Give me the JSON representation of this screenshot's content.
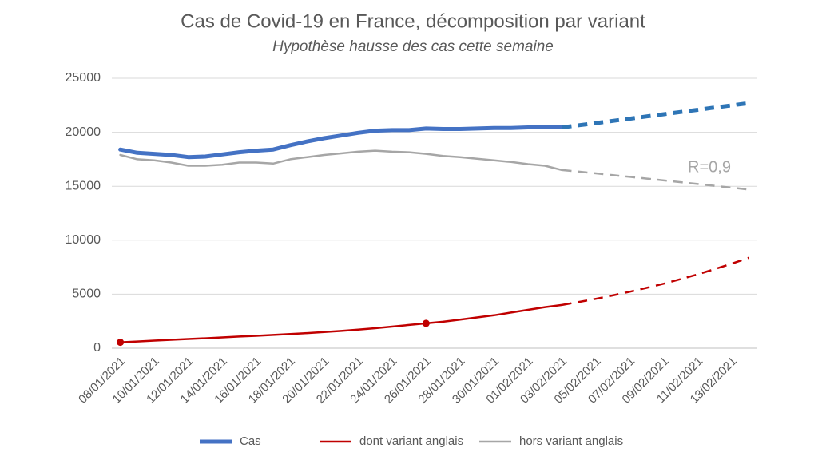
{
  "chart_data": {
    "type": "line",
    "title": "Cas de Covid-19 en France, décomposition par variant",
    "subtitle": "Hypothèse hausse des cas cette semaine",
    "annotation": "R=0,9",
    "categories": [
      "08/01/2021",
      null,
      "10/01/2021",
      null,
      "12/01/2021",
      null,
      "14/01/2021",
      null,
      "16/01/2021",
      null,
      "18/01/2021",
      null,
      "20/01/2021",
      null,
      "22/01/2021",
      null,
      "24/01/2021",
      null,
      "26/01/2021",
      null,
      "28/01/2021",
      null,
      "30/01/2021",
      null,
      "01/02/2021",
      null,
      "03/02/2021",
      null,
      "05/02/2021",
      null,
      "07/02/2021",
      null,
      "09/02/2021",
      null,
      "11/02/2021",
      null,
      "13/02/2021",
      null
    ],
    "ylim": [
      0,
      25000
    ],
    "yticks": [
      0,
      5000,
      10000,
      15000,
      20000,
      25000
    ],
    "grid": true,
    "legend": "bottom",
    "series": [
      {
        "name": "Cas",
        "color": "#4472c4",
        "forecast_color": "#2e75b6",
        "width": 5,
        "values": [
          18400,
          18100,
          18000,
          17900,
          17700,
          17750,
          17950,
          18150,
          18300,
          18400,
          18800,
          19150,
          19450,
          19700,
          19950,
          20150,
          20200,
          20200,
          20350,
          20300,
          20300,
          20350,
          20400,
          20400,
          20450,
          20500,
          20450,
          null,
          null,
          null,
          null,
          null,
          null,
          null,
          null,
          null,
          null,
          null
        ],
        "forecast": [
          null,
          null,
          null,
          null,
          null,
          null,
          null,
          null,
          null,
          null,
          null,
          null,
          null,
          null,
          null,
          null,
          null,
          null,
          null,
          null,
          null,
          null,
          null,
          null,
          null,
          null,
          20450,
          20650,
          20850,
          21060,
          21260,
          21470,
          21670,
          21880,
          22080,
          22290,
          22490,
          22700
        ]
      },
      {
        "name": "dont variant anglais",
        "color": "#c00000",
        "forecast_color": "#c00000",
        "width": 2.5,
        "markers": [
          0,
          18
        ],
        "values": [
          550,
          620,
          700,
          780,
          850,
          920,
          1000,
          1080,
          1150,
          1230,
          1320,
          1400,
          1500,
          1600,
          1720,
          1850,
          2000,
          2150,
          2300,
          2450,
          2650,
          2850,
          3050,
          3300,
          3550,
          3800,
          4000,
          null,
          null,
          null,
          null,
          null,
          null,
          null,
          null,
          null,
          null,
          null
        ],
        "forecast": [
          null,
          null,
          null,
          null,
          null,
          null,
          null,
          null,
          null,
          null,
          null,
          null,
          null,
          null,
          null,
          null,
          null,
          null,
          null,
          null,
          null,
          null,
          null,
          null,
          null,
          null,
          4000,
          4280,
          4570,
          4890,
          5230,
          5590,
          5980,
          6400,
          6840,
          7320,
          7830,
          8370
        ]
      },
      {
        "name": "hors variant anglais",
        "color": "#a6a6a6",
        "forecast_color": "#a6a6a6",
        "width": 2.5,
        "values": [
          17900,
          17500,
          17400,
          17200,
          16900,
          16900,
          17000,
          17200,
          17200,
          17100,
          17500,
          17700,
          17900,
          18050,
          18200,
          18300,
          18200,
          18150,
          18000,
          17800,
          17700,
          17550,
          17400,
          17250,
          17050,
          16900,
          16500,
          null,
          null,
          null,
          null,
          null,
          null,
          null,
          null,
          null,
          null,
          null
        ],
        "forecast": [
          null,
          null,
          null,
          null,
          null,
          null,
          null,
          null,
          null,
          null,
          null,
          null,
          null,
          null,
          null,
          null,
          null,
          null,
          null,
          null,
          null,
          null,
          null,
          null,
          null,
          null,
          16500,
          16350,
          16200,
          16030,
          15870,
          15710,
          15540,
          15380,
          15210,
          15040,
          14870,
          14700
        ]
      }
    ]
  }
}
